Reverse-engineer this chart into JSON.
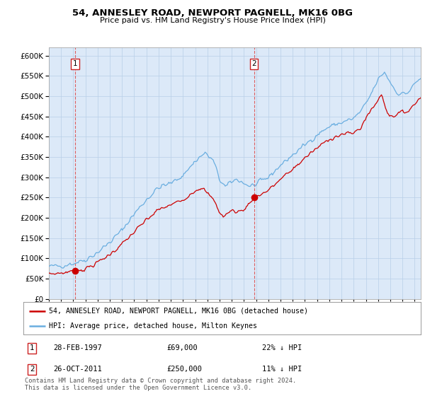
{
  "title": "54, ANNESLEY ROAD, NEWPORT PAGNELL, MK16 0BG",
  "subtitle": "Price paid vs. HM Land Registry's House Price Index (HPI)",
  "property_label": "54, ANNESLEY ROAD, NEWPORT PAGNELL, MK16 0BG (detached house)",
  "hpi_label": "HPI: Average price, detached house, Milton Keynes",
  "annotation1": {
    "label": "1",
    "date": "28-FEB-1997",
    "price": "£69,000",
    "hpi_diff": "22% ↓ HPI",
    "year": 1997.16
  },
  "annotation2": {
    "label": "2",
    "date": "26-OCT-2011",
    "price": "£250,000",
    "hpi_diff": "11% ↓ HPI",
    "year": 2011.82
  },
  "sale1_value": 69000,
  "sale2_value": 250000,
  "copyright": "Contains HM Land Registry data © Crown copyright and database right 2024.\nThis data is licensed under the Open Government Licence v3.0.",
  "bg_color": "#dce9f8",
  "hpi_line_color": "#6aaee0",
  "property_line_color": "#cc0000",
  "grid_color": "#b8cfe8",
  "ylim": [
    0,
    620000
  ],
  "xlim_start": 1995.0,
  "xlim_end": 2025.5
}
